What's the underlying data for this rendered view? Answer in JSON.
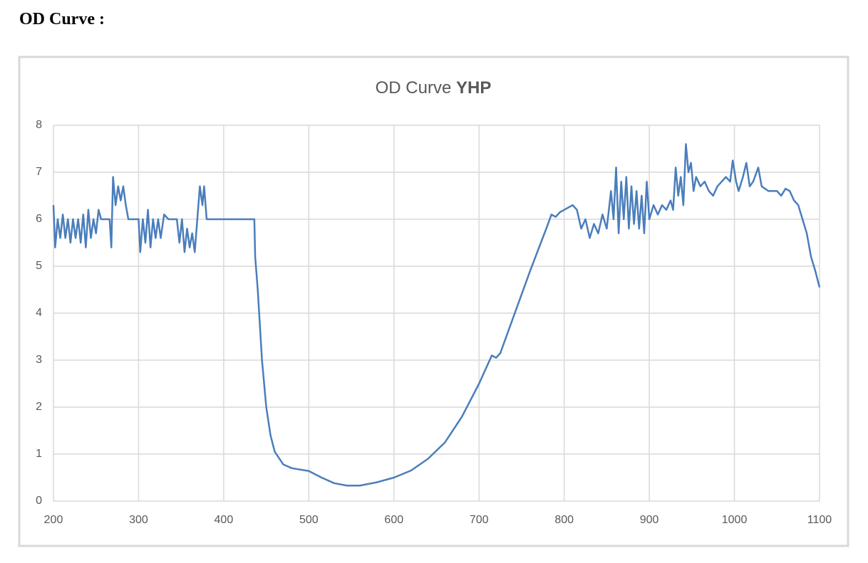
{
  "heading": "OD Curve :",
  "chart_data": {
    "type": "line",
    "title": [
      "OD Curve",
      "YHP"
    ],
    "x": [
      200,
      202,
      205,
      208,
      211,
      214,
      217,
      220,
      223,
      226,
      229,
      232,
      235,
      238,
      241,
      244,
      247,
      250,
      253,
      256,
      260,
      266,
      268,
      270,
      273,
      276,
      279,
      282,
      285,
      288,
      295,
      300,
      302,
      305,
      308,
      311,
      314,
      317,
      320,
      323,
      326,
      330,
      335,
      345,
      348,
      351,
      354,
      357,
      360,
      363,
      366,
      369,
      372,
      375,
      377,
      380,
      390,
      400,
      420,
      436,
      437,
      440,
      445,
      450,
      455,
      460,
      470,
      480,
      500,
      515,
      530,
      545,
      560,
      580,
      600,
      620,
      640,
      660,
      680,
      700,
      715,
      720,
      725,
      740,
      760,
      780,
      785,
      790,
      795,
      800,
      805,
      810,
      815,
      820,
      825,
      830,
      835,
      840,
      845,
      850,
      855,
      858,
      861,
      864,
      867,
      870,
      873,
      876,
      879,
      882,
      885,
      888,
      891,
      894,
      897,
      900,
      905,
      910,
      915,
      920,
      925,
      928,
      931,
      934,
      937,
      940,
      943,
      946,
      949,
      952,
      955,
      960,
      965,
      970,
      975,
      980,
      985,
      990,
      995,
      998,
      1002,
      1005,
      1010,
      1014,
      1018,
      1022,
      1028,
      1032,
      1040,
      1050,
      1055,
      1060,
      1065,
      1070,
      1075,
      1080,
      1085,
      1090,
      1095,
      1100
    ],
    "series": [
      {
        "color": "#4a7ebb",
        "values": [
          6.3,
          5.4,
          6.0,
          5.6,
          6.1,
          5.6,
          6.0,
          5.5,
          6.0,
          5.6,
          6.0,
          5.5,
          6.1,
          5.4,
          6.2,
          5.6,
          6.0,
          5.7,
          6.2,
          6.0,
          6.0,
          6.0,
          5.4,
          6.9,
          6.3,
          6.7,
          6.4,
          6.7,
          6.3,
          6.0,
          6.0,
          6.0,
          5.3,
          6.0,
          5.5,
          6.2,
          5.4,
          6.0,
          5.6,
          6.0,
          5.6,
          6.1,
          6.0,
          6.0,
          5.5,
          6.0,
          5.3,
          5.8,
          5.4,
          5.7,
          5.3,
          6.0,
          6.7,
          6.3,
          6.7,
          6.0,
          6.0,
          6.0,
          6.0,
          6.0,
          5.2,
          4.5,
          3.0,
          2.0,
          1.4,
          1.05,
          0.78,
          0.7,
          0.64,
          0.5,
          0.38,
          0.33,
          0.33,
          0.4,
          0.5,
          0.65,
          0.9,
          1.25,
          1.8,
          2.5,
          3.1,
          3.05,
          3.15,
          3.9,
          4.9,
          5.85,
          6.1,
          6.05,
          6.15,
          6.2,
          6.25,
          6.3,
          6.2,
          5.8,
          6.0,
          5.6,
          5.9,
          5.7,
          6.1,
          5.8,
          6.6,
          6.0,
          7.1,
          5.7,
          6.8,
          6.0,
          6.9,
          5.8,
          6.7,
          5.9,
          6.6,
          5.8,
          6.5,
          5.7,
          6.8,
          6.0,
          6.3,
          6.1,
          6.3,
          6.2,
          6.4,
          6.2,
          7.1,
          6.5,
          6.9,
          6.3,
          7.6,
          7.0,
          7.2,
          6.6,
          6.9,
          6.7,
          6.8,
          6.6,
          6.5,
          6.7,
          6.8,
          6.9,
          6.8,
          7.25,
          6.8,
          6.6,
          6.9,
          7.2,
          6.7,
          6.8,
          7.1,
          6.7,
          6.6,
          6.6,
          6.5,
          6.65,
          6.6,
          6.4,
          6.3,
          6.0,
          5.7,
          5.2,
          4.9,
          4.55
        ]
      }
    ],
    "xlim": [
      200,
      1100
    ],
    "xticks": [
      200,
      300,
      400,
      500,
      600,
      700,
      800,
      900,
      1000,
      1100
    ],
    "ylim": [
      0,
      8
    ],
    "yticks": [
      0,
      1,
      2,
      3,
      4,
      5,
      6,
      7,
      8
    ],
    "grid": true
  }
}
